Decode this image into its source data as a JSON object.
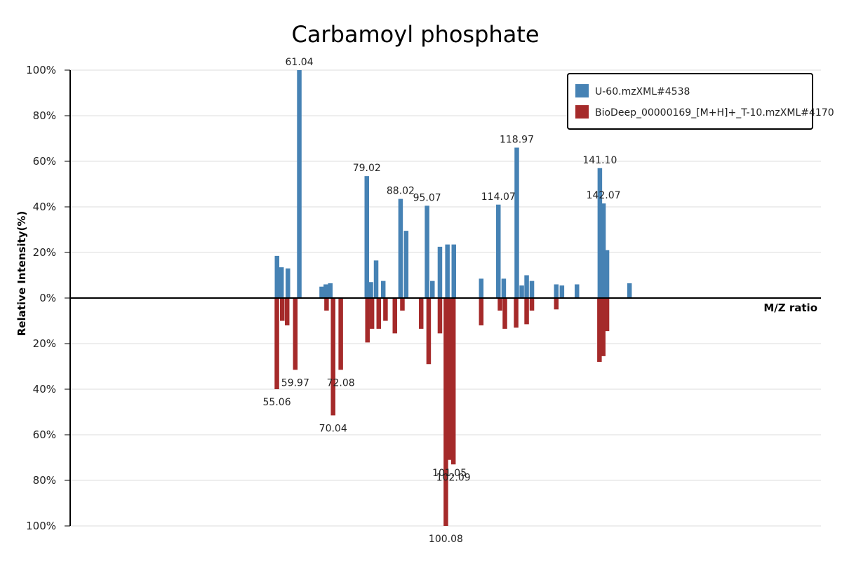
{
  "colors": {
    "series_top": "#4682b4",
    "series_bottom": "#a52a2a",
    "grid": "#dddddd",
    "axis": "#000000"
  },
  "chart_data": {
    "type": "bar",
    "title": "Carbamoyl phosphate",
    "xlabel": "M/Z ratio",
    "ylabel": "Relative Intensity(%)",
    "ylim": [
      -100,
      100
    ],
    "yticks": [
      {
        "value": 100,
        "label": "100%"
      },
      {
        "value": 80,
        "label": "80%"
      },
      {
        "value": 60,
        "label": "60%"
      },
      {
        "value": 40,
        "label": "40%"
      },
      {
        "value": 20,
        "label": "20%"
      },
      {
        "value": 0,
        "label": "0%"
      },
      {
        "value": -20,
        "label": "20%"
      },
      {
        "value": -40,
        "label": "40%"
      },
      {
        "value": -60,
        "label": "60%"
      },
      {
        "value": -80,
        "label": "80%"
      },
      {
        "value": -100,
        "label": "100%"
      }
    ],
    "xlim": [
      0,
      200
    ],
    "grid": true,
    "legend_position": "top-right",
    "series": [
      {
        "name": "U-60.mzXML#4538",
        "direction": "up",
        "peaks": [
          {
            "mz": 55.1,
            "intensity": 18.5
          },
          {
            "mz": 56.3,
            "intensity": 13.5
          },
          {
            "mz": 58.0,
            "intensity": 13.0
          },
          {
            "mz": 61.04,
            "intensity": 100,
            "label": "61.04"
          },
          {
            "mz": 67.0,
            "intensity": 5.0
          },
          {
            "mz": 68.1,
            "intensity": 6.0
          },
          {
            "mz": 69.3,
            "intensity": 6.5
          },
          {
            "mz": 79.02,
            "intensity": 53.5,
            "label": "79.02"
          },
          {
            "mz": 80.1,
            "intensity": 7.0
          },
          {
            "mz": 81.5,
            "intensity": 16.5
          },
          {
            "mz": 83.4,
            "intensity": 7.5
          },
          {
            "mz": 88.02,
            "intensity": 43.5,
            "label": "88.02"
          },
          {
            "mz": 89.5,
            "intensity": 29.5
          },
          {
            "mz": 95.07,
            "intensity": 40.5,
            "label": "95.07"
          },
          {
            "mz": 96.5,
            "intensity": 7.5
          },
          {
            "mz": 98.5,
            "intensity": 22.5
          },
          {
            "mz": 100.5,
            "intensity": 23.5
          },
          {
            "mz": 102.2,
            "intensity": 23.5
          },
          {
            "mz": 109.5,
            "intensity": 8.5
          },
          {
            "mz": 114.07,
            "intensity": 41.0,
            "label": "114.07"
          },
          {
            "mz": 115.5,
            "intensity": 8.5
          },
          {
            "mz": 118.97,
            "intensity": 66.0,
            "label": "118.97"
          },
          {
            "mz": 120.3,
            "intensity": 5.5
          },
          {
            "mz": 121.6,
            "intensity": 10.0
          },
          {
            "mz": 123.0,
            "intensity": 7.5
          },
          {
            "mz": 129.5,
            "intensity": 6.0
          },
          {
            "mz": 131.0,
            "intensity": 5.5
          },
          {
            "mz": 135.0,
            "intensity": 6.0
          },
          {
            "mz": 141.1,
            "intensity": 57.0,
            "label": "141.10"
          },
          {
            "mz": 142.07,
            "intensity": 41.5,
            "label": "142.07"
          },
          {
            "mz": 143.0,
            "intensity": 21.0
          },
          {
            "mz": 149.0,
            "intensity": 6.5
          }
        ]
      },
      {
        "name": "BioDeep_00000169_[M+H]+_T-10.mzXML#4170",
        "direction": "down",
        "peaks": [
          {
            "mz": 55.06,
            "intensity": 40.0,
            "label": "55.06"
          },
          {
            "mz": 56.5,
            "intensity": 10.0
          },
          {
            "mz": 57.8,
            "intensity": 12.0
          },
          {
            "mz": 59.97,
            "intensity": 31.5,
            "label": "59.97"
          },
          {
            "mz": 68.3,
            "intensity": 5.5
          },
          {
            "mz": 70.04,
            "intensity": 51.5,
            "label": "70.04"
          },
          {
            "mz": 72.08,
            "intensity": 31.5,
            "label": "72.08"
          },
          {
            "mz": 79.2,
            "intensity": 19.5
          },
          {
            "mz": 80.4,
            "intensity": 13.5
          },
          {
            "mz": 82.2,
            "intensity": 13.5
          },
          {
            "mz": 84.0,
            "intensity": 10.0
          },
          {
            "mz": 86.5,
            "intensity": 15.5
          },
          {
            "mz": 88.5,
            "intensity": 5.5
          },
          {
            "mz": 93.5,
            "intensity": 13.5
          },
          {
            "mz": 95.5,
            "intensity": 29.0
          },
          {
            "mz": 98.5,
            "intensity": 15.5
          },
          {
            "mz": 100.08,
            "intensity": 100,
            "label": "100.08"
          },
          {
            "mz": 101.05,
            "intensity": 71.0,
            "label": "101.05"
          },
          {
            "mz": 102.09,
            "intensity": 73.0,
            "label": "102.09"
          },
          {
            "mz": 109.5,
            "intensity": 12.0
          },
          {
            "mz": 114.5,
            "intensity": 5.5
          },
          {
            "mz": 115.8,
            "intensity": 13.5
          },
          {
            "mz": 118.8,
            "intensity": 13.0
          },
          {
            "mz": 121.6,
            "intensity": 11.5
          },
          {
            "mz": 123.0,
            "intensity": 5.5
          },
          {
            "mz": 129.5,
            "intensity": 5.0
          },
          {
            "mz": 141.0,
            "intensity": 28.0
          },
          {
            "mz": 142.0,
            "intensity": 25.5
          },
          {
            "mz": 143.0,
            "intensity": 14.5
          }
        ]
      }
    ]
  }
}
